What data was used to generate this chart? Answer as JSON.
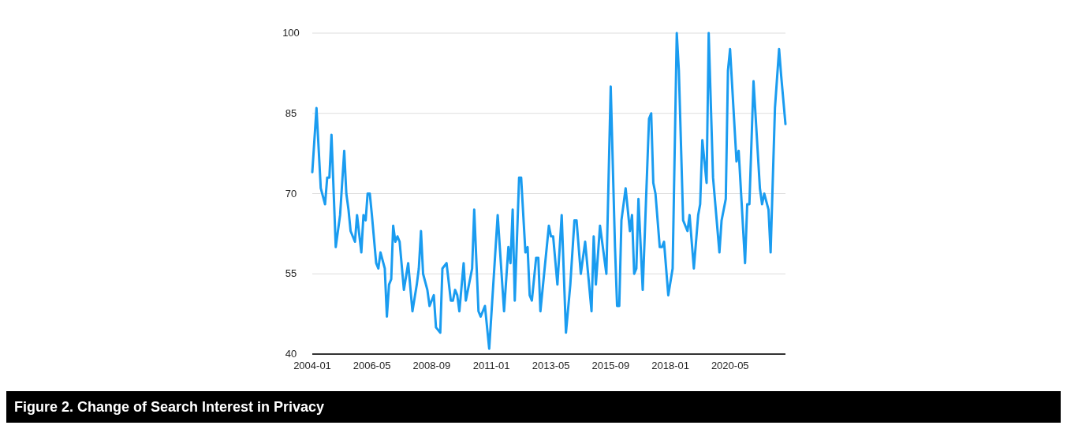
{
  "chart_data": {
    "type": "line",
    "title": "Figure 2. Change of Search Interest in Privacy",
    "x": [
      "2004-01",
      "2004-03",
      "2004-05",
      "2004-07",
      "2004-08",
      "2004-09",
      "2004-10",
      "2004-12",
      "2005-02",
      "2005-04",
      "2005-05",
      "2005-06",
      "2005-07",
      "2005-09",
      "2005-10",
      "2005-12",
      "2006-01",
      "2006-02",
      "2006-03",
      "2006-04",
      "2006-05",
      "2006-07",
      "2006-08",
      "2006-09",
      "2006-11",
      "2006-12",
      "2007-01",
      "2007-02",
      "2007-03",
      "2007-04",
      "2007-05",
      "2007-06",
      "2007-08",
      "2007-10",
      "2007-12",
      "2008-02",
      "2008-03",
      "2008-04",
      "2008-05",
      "2008-07",
      "2008-08",
      "2008-10",
      "2008-11",
      "2009-01",
      "2009-02",
      "2009-04",
      "2009-06",
      "2009-07",
      "2009-08",
      "2009-09",
      "2009-10",
      "2009-12",
      "2010-01",
      "2010-04",
      "2010-05",
      "2010-07",
      "2010-08",
      "2010-10",
      "2010-12",
      "2011-04",
      "2011-07",
      "2011-09",
      "2011-10",
      "2011-11",
      "2011-12",
      "2012-02",
      "2012-03",
      "2012-05",
      "2012-06",
      "2012-07",
      "2012-08",
      "2012-10",
      "2012-11",
      "2012-12",
      "2013-04",
      "2013-05",
      "2013-06",
      "2013-08",
      "2013-10",
      "2013-12",
      "2014-02",
      "2014-04",
      "2014-05",
      "2014-07",
      "2014-09",
      "2014-12",
      "2015-01",
      "2015-02",
      "2015-04",
      "2015-07",
      "2015-09",
      "2015-11",
      "2015-12",
      "2016-01",
      "2016-02",
      "2016-04",
      "2016-06",
      "2016-07",
      "2016-08",
      "2016-09",
      "2016-10",
      "2016-12",
      "2017-03",
      "2017-04",
      "2017-05",
      "2017-06",
      "2017-08",
      "2017-09",
      "2017-10",
      "2017-12",
      "2018-02",
      "2018-04",
      "2018-05",
      "2018-07",
      "2018-09",
      "2018-10",
      "2018-12",
      "2019-02",
      "2019-03",
      "2019-04",
      "2019-06",
      "2019-07",
      "2019-09",
      "2019-12",
      "2020-01",
      "2020-03",
      "2020-04",
      "2020-05",
      "2020-08",
      "2020-09",
      "2020-12",
      "2021-01",
      "2021-02",
      "2021-04",
      "2021-07",
      "2021-08",
      "2021-09",
      "2021-11",
      "2021-12",
      "2022-02",
      "2022-04",
      "2022-05",
      "2022-07"
    ],
    "series": [
      {
        "color": "#1a9cf0",
        "values": [
          74,
          86,
          71,
          68,
          73,
          73,
          81,
          60,
          66,
          78,
          70,
          67,
          63,
          61,
          66,
          59,
          66,
          65,
          70,
          70,
          66,
          57,
          56,
          59,
          56,
          47,
          53,
          54,
          64,
          61,
          62,
          61,
          52,
          57,
          48,
          53,
          56,
          63,
          55,
          52,
          49,
          51,
          45,
          44,
          56,
          57,
          50,
          50,
          52,
          51,
          48,
          57,
          50,
          56,
          67,
          48,
          47,
          49,
          41,
          66,
          48,
          60,
          57,
          67,
          50,
          73,
          73,
          59,
          60,
          51,
          50,
          58,
          58,
          48,
          64,
          62,
          62,
          53,
          66,
          44,
          53,
          65,
          65,
          55,
          61,
          48,
          62,
          53,
          64,
          55,
          90,
          60,
          49,
          49,
          65,
          71,
          63,
          66,
          55,
          56,
          69,
          52,
          84,
          85,
          72,
          70,
          60,
          60,
          61,
          51,
          56,
          100,
          93,
          65,
          63,
          66,
          56,
          66,
          68,
          80,
          72,
          100,
          73,
          59,
          65,
          69,
          93,
          97,
          76,
          78,
          57,
          68,
          68,
          91,
          71,
          68,
          70,
          67,
          59,
          86,
          97,
          92,
          83
        ]
      }
    ],
    "xlim": [
      "2004-01",
      "2022-07"
    ],
    "xticks": [
      "2004-01",
      "2006-05",
      "2008-09",
      "2011-01",
      "2013-05",
      "2015-09",
      "2018-01",
      "2020-05"
    ],
    "ylim": [
      40,
      100
    ],
    "yticks": [
      40,
      55,
      70,
      85,
      100
    ],
    "grid": "y",
    "line_style": "solid",
    "marker": "none"
  }
}
